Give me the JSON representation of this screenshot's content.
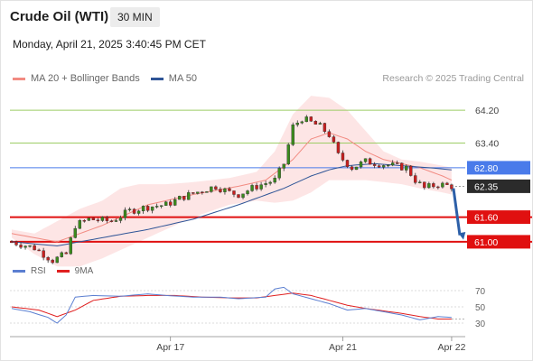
{
  "header": {
    "title": "Crude Oil (WTI)",
    "timeframe": "30 MIN",
    "datetime": "Monday, April 21, 2025 3:40:45 PM CET"
  },
  "legend": {
    "ma20_label": "MA 20 + Bollinger Bands",
    "ma50_label": "MA 50",
    "ma20_color": "#f28b82",
    "ma50_color": "#2f5597",
    "credit": "Research © 2025 Trading Central"
  },
  "rsi_legend": {
    "rsi_label": "RSI",
    "ma_label": "9MA",
    "rsi_color": "#5b7fd1",
    "ma_color": "#e02020"
  },
  "chart_data": [
    {
      "type": "candlestick",
      "ylim": [
        60.45,
        64.75
      ],
      "x_ticks": [
        {
          "label": "Apr 17",
          "index": 35
        },
        {
          "label": "Apr 21",
          "index": 73
        },
        {
          "label": "Apr 22",
          "index": 97
        }
      ],
      "current_price": {
        "label": "62.35",
        "value": 62.35
      },
      "levels": [
        {
          "label": "64.20",
          "value": 64.2,
          "color": "#9ccc65",
          "style": "line"
        },
        {
          "label": "63.40",
          "value": 63.4,
          "color": "#9ccc65",
          "style": "line"
        },
        {
          "label": "62.80",
          "value": 62.8,
          "color": "#4a7bea",
          "style": "tag"
        },
        {
          "label": "61.60",
          "value": 61.6,
          "color": "#e01010",
          "style": "tag"
        },
        {
          "label": "61.00",
          "value": 61.0,
          "color": "#e01010",
          "style": "tag"
        }
      ],
      "forecast_arrow": {
        "from": 62.3,
        "to": 61.05,
        "color": "#2c5fa8"
      },
      "anchors": [
        [
          0,
          61.0
        ],
        [
          5,
          60.85
        ],
        [
          9,
          60.55
        ],
        [
          12,
          60.7
        ],
        [
          14,
          61.4
        ],
        [
          17,
          61.55
        ],
        [
          22,
          61.5
        ],
        [
          26,
          61.75
        ],
        [
          30,
          61.85
        ],
        [
          34,
          61.9
        ],
        [
          38,
          62.1
        ],
        [
          42,
          62.25
        ],
        [
          45,
          62.35
        ],
        [
          48,
          62.2
        ],
        [
          50,
          62.15
        ],
        [
          54,
          62.35
        ],
        [
          58,
          62.5
        ],
        [
          60,
          62.9
        ],
        [
          62,
          63.8
        ],
        [
          64,
          64.0
        ],
        [
          66,
          63.9
        ],
        [
          68,
          63.8
        ],
        [
          70,
          63.6
        ],
        [
          72,
          63.1
        ],
        [
          75,
          62.8
        ],
        [
          78,
          62.95
        ],
        [
          81,
          62.9
        ],
        [
          84,
          62.85
        ],
        [
          87,
          62.8
        ],
        [
          89,
          62.5
        ],
        [
          91,
          62.3
        ],
        [
          94,
          62.4
        ],
        [
          97,
          62.35
        ]
      ],
      "ma20": [
        [
          0,
          61.2
        ],
        [
          10,
          61.0
        ],
        [
          20,
          61.4
        ],
        [
          30,
          61.9
        ],
        [
          40,
          62.15
        ],
        [
          50,
          62.35
        ],
        [
          56,
          62.5
        ],
        [
          62,
          63.0
        ],
        [
          66,
          63.5
        ],
        [
          70,
          63.65
        ],
        [
          74,
          63.5
        ],
        [
          78,
          63.2
        ],
        [
          82,
          63.0
        ],
        [
          86,
          62.9
        ],
        [
          90,
          62.8
        ],
        [
          95,
          62.6
        ],
        [
          97,
          62.5
        ]
      ],
      "ma50": [
        [
          0,
          61.0
        ],
        [
          10,
          60.9
        ],
        [
          20,
          61.1
        ],
        [
          30,
          61.3
        ],
        [
          40,
          61.55
        ],
        [
          50,
          61.9
        ],
        [
          60,
          62.3
        ],
        [
          66,
          62.6
        ],
        [
          70,
          62.75
        ],
        [
          74,
          62.85
        ],
        [
          80,
          62.9
        ],
        [
          86,
          62.85
        ],
        [
          92,
          62.8
        ],
        [
          97,
          62.75
        ]
      ],
      "bb_upper": [
        [
          0,
          61.3
        ],
        [
          5,
          61.2
        ],
        [
          10,
          61.5
        ],
        [
          15,
          61.8
        ],
        [
          20,
          62.0
        ],
        [
          24,
          62.3
        ],
        [
          28,
          62.4
        ],
        [
          34,
          62.4
        ],
        [
          40,
          62.45
        ],
        [
          48,
          62.55
        ],
        [
          54,
          62.7
        ],
        [
          58,
          63.2
        ],
        [
          62,
          64.1
        ],
        [
          66,
          64.55
        ],
        [
          70,
          64.5
        ],
        [
          74,
          64.2
        ],
        [
          78,
          63.7
        ],
        [
          82,
          63.2
        ],
        [
          86,
          63.0
        ],
        [
          90,
          62.95
        ],
        [
          95,
          62.85
        ],
        [
          97,
          62.8
        ]
      ],
      "bb_lower": [
        [
          0,
          61.1
        ],
        [
          5,
          60.7
        ],
        [
          10,
          60.4
        ],
        [
          15,
          60.4
        ],
        [
          20,
          60.6
        ],
        [
          24,
          60.8
        ],
        [
          28,
          61.0
        ],
        [
          34,
          61.3
        ],
        [
          40,
          61.6
        ],
        [
          48,
          61.9
        ],
        [
          54,
          62.0
        ],
        [
          58,
          61.95
        ],
        [
          62,
          62.0
        ],
        [
          66,
          62.2
        ],
        [
          70,
          62.5
        ],
        [
          74,
          62.5
        ],
        [
          78,
          62.5
        ],
        [
          82,
          62.45
        ],
        [
          86,
          62.4
        ],
        [
          90,
          62.3
        ],
        [
          95,
          62.2
        ],
        [
          97,
          62.15
        ]
      ],
      "bb_fill_color": "#fcdcdc"
    },
    {
      "type": "line",
      "title": "RSI",
      "ylim": [
        20,
        80
      ],
      "y_ticks": [
        70,
        50,
        30
      ],
      "reference_line": 35,
      "rsi": [
        [
          0,
          48
        ],
        [
          4,
          44
        ],
        [
          8,
          37
        ],
        [
          10,
          30
        ],
        [
          12,
          40
        ],
        [
          14,
          62
        ],
        [
          18,
          64
        ],
        [
          24,
          63
        ],
        [
          30,
          66
        ],
        [
          34,
          64
        ],
        [
          40,
          62
        ],
        [
          46,
          62
        ],
        [
          50,
          60
        ],
        [
          56,
          62
        ],
        [
          58,
          72
        ],
        [
          60,
          74
        ],
        [
          62,
          66
        ],
        [
          66,
          60
        ],
        [
          70,
          54
        ],
        [
          74,
          46
        ],
        [
          78,
          48
        ],
        [
          82,
          44
        ],
        [
          86,
          40
        ],
        [
          90,
          34
        ],
        [
          94,
          38
        ],
        [
          97,
          37
        ]
      ],
      "ma9": [
        [
          0,
          50
        ],
        [
          6,
          46
        ],
        [
          10,
          38
        ],
        [
          14,
          46
        ],
        [
          18,
          58
        ],
        [
          24,
          63
        ],
        [
          30,
          64
        ],
        [
          36,
          64
        ],
        [
          42,
          62
        ],
        [
          48,
          61
        ],
        [
          54,
          61
        ],
        [
          58,
          64
        ],
        [
          62,
          67
        ],
        [
          66,
          64
        ],
        [
          70,
          58
        ],
        [
          74,
          52
        ],
        [
          78,
          48
        ],
        [
          82,
          45
        ],
        [
          86,
          42
        ],
        [
          90,
          38
        ],
        [
          94,
          35
        ],
        [
          97,
          35
        ]
      ]
    }
  ]
}
